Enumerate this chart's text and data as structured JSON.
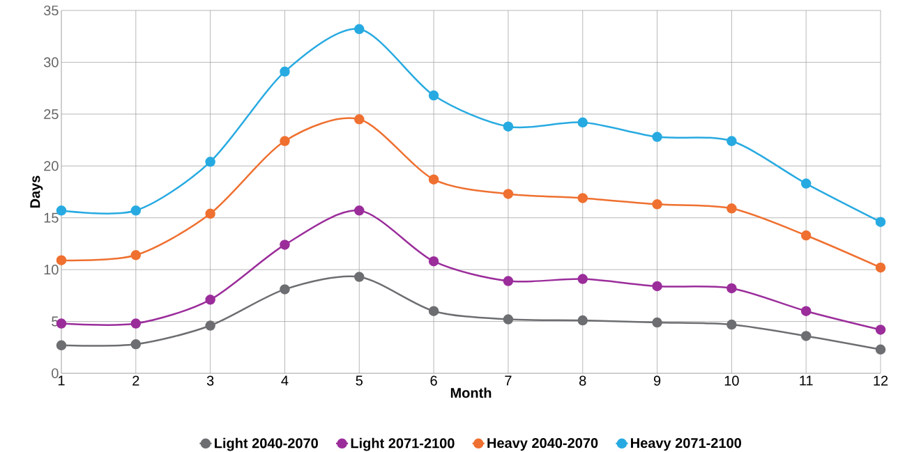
{
  "chart_data": {
    "type": "line",
    "xlabel": "Month",
    "ylabel": "Days",
    "categories": [
      "1",
      "2",
      "3",
      "4",
      "5",
      "6",
      "7",
      "8",
      "9",
      "10",
      "11",
      "12"
    ],
    "ylim": [
      0,
      35
    ],
    "yticks": [
      0,
      5,
      10,
      15,
      20,
      25,
      30,
      35
    ],
    "grid": true,
    "legend": "bottom",
    "marker": "circle",
    "series": [
      {
        "name": "Light 2040-2070",
        "color": "#6d6e71",
        "values": [
          2.7,
          2.8,
          4.6,
          8.1,
          9.3,
          6.0,
          5.2,
          5.1,
          4.9,
          4.7,
          3.6,
          2.3
        ]
      },
      {
        "name": "Light 2071-2100",
        "color": "#9b2d9b",
        "values": [
          4.8,
          4.8,
          7.1,
          12.4,
          15.7,
          10.8,
          8.9,
          9.1,
          8.4,
          8.2,
          6.0,
          4.2
        ]
      },
      {
        "name": "Heavy 2040-2070",
        "color": "#ef7030",
        "values": [
          10.9,
          11.4,
          15.4,
          22.4,
          24.5,
          18.7,
          17.3,
          16.9,
          16.3,
          15.9,
          13.3,
          10.2
        ]
      },
      {
        "name": "Heavy 2071-2100",
        "color": "#27aae1",
        "values": [
          15.7,
          15.7,
          20.4,
          29.1,
          33.2,
          26.8,
          23.8,
          24.2,
          22.8,
          22.4,
          18.3,
          14.6
        ]
      }
    ]
  }
}
